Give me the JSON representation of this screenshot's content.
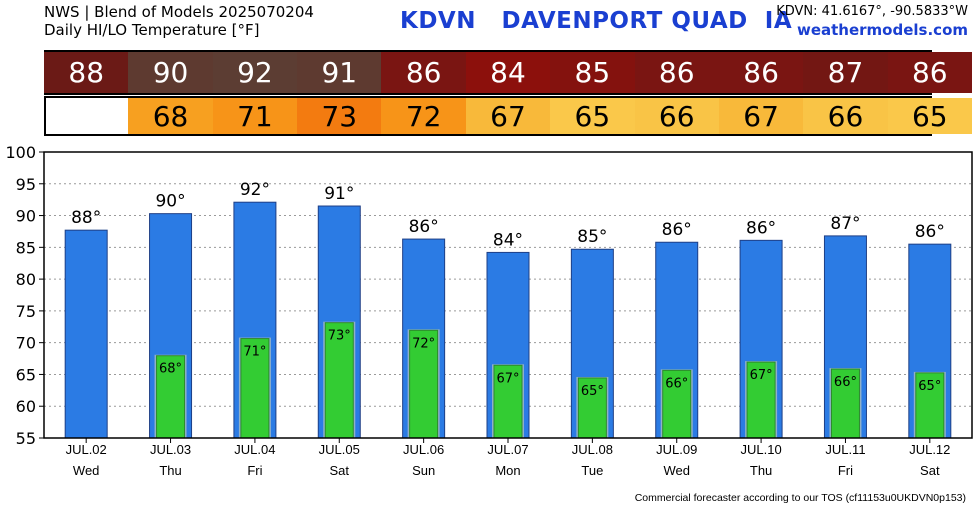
{
  "header": {
    "line1": "NWS | Blend of Models 2025070204",
    "line2": "Daily HI/LO Temperature [°F]",
    "station_title": "KDVN   DAVENPORT QUAD  IA",
    "coords": "KDVN: 41.6167°, -90.5833°W",
    "site": "weathermodels.com"
  },
  "footer": {
    "text": "Commercial forecaster according to our TOS (cf11153u0UKDVN0p153)"
  },
  "colors": {
    "hi_bar": "#2b7be4",
    "lo_bar": "#33cc33",
    "title_blue": "#1a3fd1"
  },
  "hi_row": {
    "values": [
      "88",
      "90",
      "92",
      "91",
      "86",
      "84",
      "85",
      "86",
      "86",
      "87",
      "86"
    ],
    "colors": [
      "#6b1a16",
      "#5e3a30",
      "#5c3d33",
      "#5e3a30",
      "#7a1512",
      "#8c100c",
      "#84120e",
      "#7a1512",
      "#7a1512",
      "#731713",
      "#7a1512"
    ]
  },
  "lo_row": {
    "values": [
      "68",
      "71",
      "73",
      "72",
      "67",
      "65",
      "66",
      "67",
      "66",
      "65"
    ],
    "colors": [
      "#f7a020",
      "#f79418",
      "#f37b10",
      "#f79418",
      "#f8b93a",
      "#fac84a",
      "#f9c446",
      "#f8b93a",
      "#f9c446",
      "#fac84a"
    ]
  },
  "chart_data": {
    "type": "bar",
    "categories": [
      "JUL.02",
      "JUL.03",
      "JUL.04",
      "JUL.05",
      "JUL.06",
      "JUL.07",
      "JUL.08",
      "JUL.09",
      "JUL.10",
      "JUL.11",
      "JUL.12"
    ],
    "weekdays": [
      "Wed",
      "Thu",
      "Fri",
      "Sat",
      "Sun",
      "Mon",
      "Tue",
      "Wed",
      "Thu",
      "Fri",
      "Sat"
    ],
    "series": [
      {
        "values": [
          87.7,
          90.3,
          92.1,
          91.5,
          86.3,
          84.2,
          84.7,
          85.8,
          86.1,
          86.8,
          85.5
        ],
        "labels": [
          "88°",
          "90°",
          "92°",
          "91°",
          "86°",
          "84°",
          "85°",
          "86°",
          "86°",
          "87°",
          "86°"
        ]
      },
      {
        "values": [
          null,
          68.1,
          70.8,
          73.3,
          72.1,
          66.6,
          64.6,
          65.8,
          67.1,
          66.0,
          65.4
        ],
        "labels": [
          "",
          "68°",
          "71°",
          "73°",
          "72°",
          "67°",
          "65°",
          "66°",
          "67°",
          "66°",
          "65°"
        ]
      }
    ],
    "yticks": [
      55,
      60,
      65,
      70,
      75,
      80,
      85,
      90,
      95,
      100
    ],
    "ylim": [
      55,
      100
    ],
    "grid": true
  }
}
